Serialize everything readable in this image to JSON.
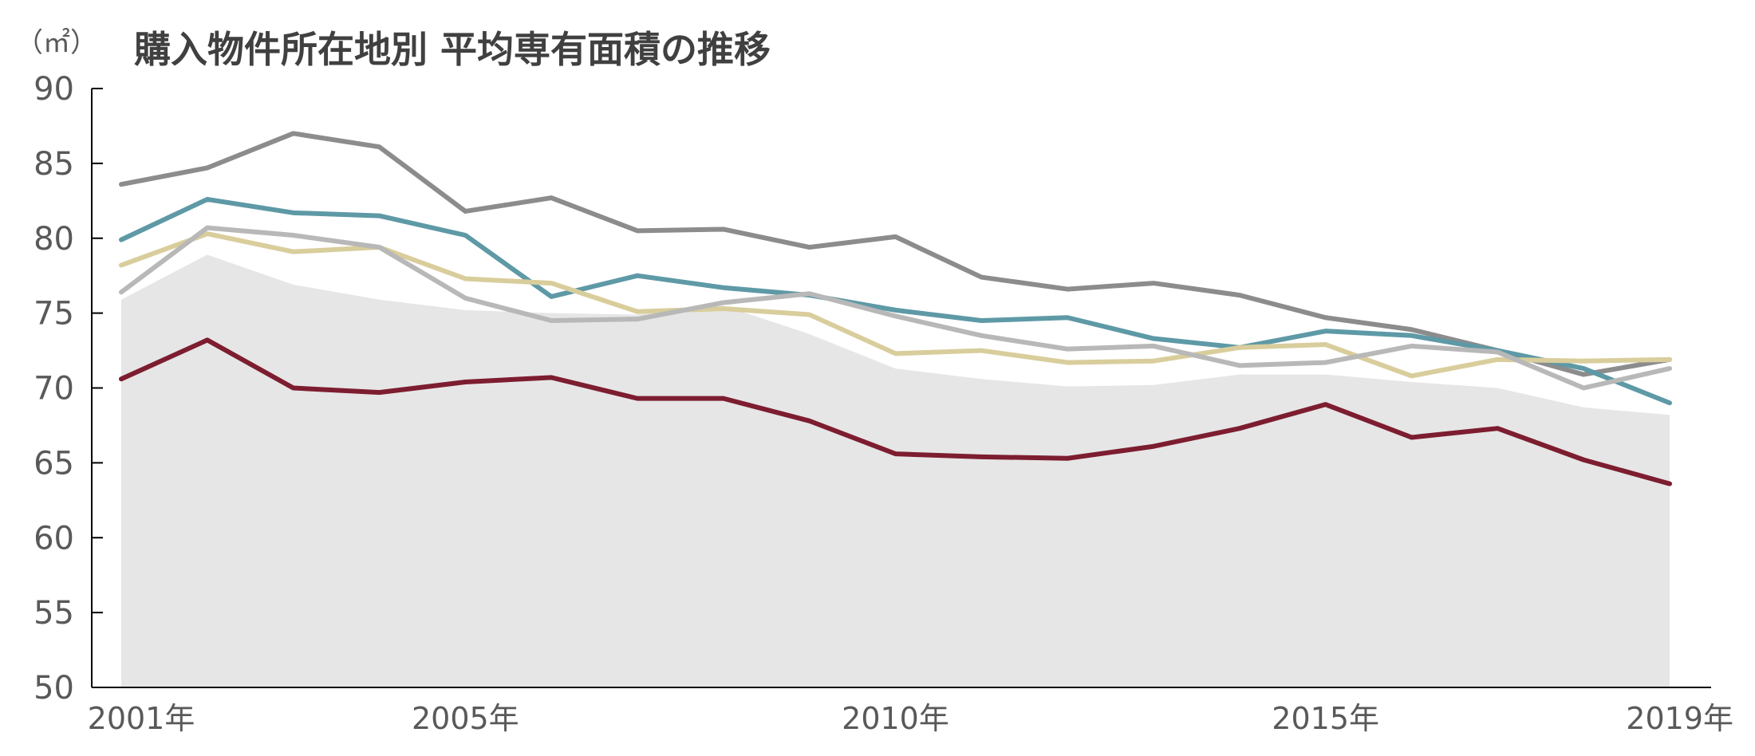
{
  "chart_data": {
    "type": "line",
    "title": "購入物件所在地別 平均専有面積の推移",
    "ylabel": "（㎡）",
    "xlabel": "",
    "ylim": [
      50,
      90
    ],
    "yticks": [
      50,
      55,
      60,
      65,
      70,
      75,
      80,
      85,
      90
    ],
    "x": [
      2001,
      2002,
      2003,
      2004,
      2005,
      2006,
      2007,
      2008,
      2009,
      2010,
      2011,
      2012,
      2013,
      2014,
      2015,
      2016,
      2017,
      2018,
      2019
    ],
    "x_tick_labels": [
      {
        "x": 2001,
        "label": "2001年"
      },
      {
        "x": 2005,
        "label": "2005年"
      },
      {
        "x": 2010,
        "label": "2010年"
      },
      {
        "x": 2015,
        "label": "2015年"
      },
      {
        "x": 2019,
        "label": "2019年"
      }
    ],
    "grid": false,
    "legend": "none",
    "series": [
      {
        "kind": "area",
        "color": "#e6e6e6",
        "values": [
          75.9,
          78.9,
          76.9,
          75.9,
          75.2,
          75.0,
          74.9,
          75.5,
          73.6,
          71.3,
          70.6,
          70.1,
          70.2,
          70.9,
          70.9,
          70.4,
          70.0,
          68.7,
          68.2
        ]
      },
      {
        "kind": "line",
        "color": "#8c8c8c",
        "values": [
          83.6,
          84.7,
          87.0,
          86.1,
          81.8,
          82.7,
          80.5,
          80.6,
          79.4,
          80.1,
          77.4,
          76.6,
          77.0,
          76.2,
          74.7,
          73.9,
          72.5,
          70.9,
          71.9
        ]
      },
      {
        "kind": "line",
        "color": "#5e99a6",
        "values": [
          79.9,
          82.6,
          81.7,
          81.5,
          80.2,
          76.1,
          77.5,
          76.7,
          76.2,
          75.2,
          74.5,
          74.7,
          73.3,
          72.7,
          73.8,
          73.5,
          72.5,
          71.3,
          69.0
        ]
      },
      {
        "kind": "line",
        "color": "#d9cd9c",
        "values": [
          78.2,
          80.3,
          79.1,
          79.4,
          77.3,
          77.0,
          75.1,
          75.3,
          74.9,
          72.3,
          72.5,
          71.7,
          71.8,
          72.7,
          72.9,
          70.8,
          71.9,
          71.8,
          71.9
        ]
      },
      {
        "kind": "line",
        "color": "#b8b8b8",
        "values": [
          76.4,
          80.7,
          80.2,
          79.4,
          76.0,
          74.5,
          74.6,
          75.7,
          76.3,
          74.8,
          73.5,
          72.6,
          72.8,
          71.5,
          71.7,
          72.8,
          72.4,
          70.0,
          71.3
        ]
      },
      {
        "kind": "line",
        "color": "#7d1d30",
        "values": [
          70.6,
          73.2,
          70.0,
          69.7,
          70.4,
          70.7,
          69.3,
          69.3,
          67.8,
          65.6,
          65.4,
          65.3,
          66.1,
          67.3,
          68.9,
          66.7,
          67.3,
          65.2,
          63.6
        ]
      }
    ]
  }
}
